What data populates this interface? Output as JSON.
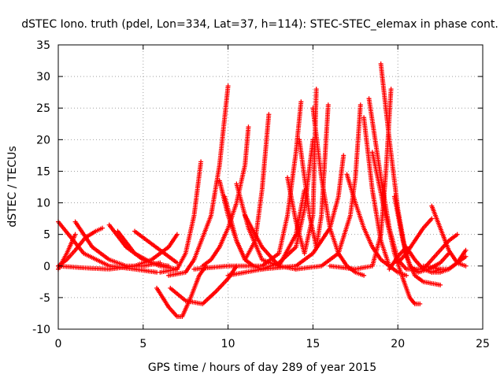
{
  "chart_data": {
    "type": "scatter",
    "title": "dSTEC Iono. truth (pdel, Lon=334, Lat=37, h=114): STEC-STEC_elemax in phase cont.",
    "xlabel": "GPS time / hours of day 289 of year 2015",
    "ylabel": "dSTEC  / TECUs",
    "xlim": [
      0,
      25
    ],
    "ylim": [
      -10,
      35
    ],
    "xticks": [
      0,
      5,
      10,
      15,
      20,
      25
    ],
    "yticks": [
      -10,
      -5,
      0,
      5,
      10,
      15,
      20,
      25,
      30,
      35
    ],
    "grid": true,
    "marker": "+",
    "color": "#ff0000",
    "series": [
      {
        "x": [
          0.0,
          1.5,
          3.0,
          4.5,
          5.8
        ],
        "y": [
          7.0,
          2.0,
          0.0,
          -0.5,
          -1.0
        ]
      },
      {
        "x": [
          0.0,
          0.5,
          1.0,
          1.6,
          2.2,
          2.6
        ],
        "y": [
          0.0,
          1.0,
          2.5,
          4.5,
          5.5,
          6.0
        ]
      },
      {
        "x": [
          0.0,
          0.5,
          1.0
        ],
        "y": [
          -0.5,
          2.0,
          5.0
        ]
      },
      {
        "x": [
          1.0,
          2.0,
          3.0,
          4.0,
          5.0,
          6.0
        ],
        "y": [
          7.0,
          3.0,
          1.0,
          0.0,
          0.0,
          0.5
        ]
      },
      {
        "x": [
          3.0,
          4.0,
          5.0,
          6.0,
          7.0
        ],
        "y": [
          6.5,
          3.0,
          1.0,
          0.0,
          -0.5
        ]
      },
      {
        "x": [
          3.5,
          4.5,
          5.5,
          6.5
        ],
        "y": [
          5.5,
          2.0,
          0.5,
          0.0
        ]
      },
      {
        "x": [
          0.0,
          1.5,
          3.0,
          4.5,
          5.5,
          6.5,
          7.0
        ],
        "y": [
          0.0,
          -0.3,
          -0.5,
          0.0,
          1.0,
          3.0,
          5.0
        ]
      },
      {
        "x": [
          4.5,
          5.0,
          5.5,
          6.0,
          6.5,
          7.0
        ],
        "y": [
          5.5,
          4.5,
          3.5,
          2.5,
          1.5,
          0.5
        ]
      },
      {
        "x": [
          5.8,
          6.5,
          7.0,
          7.3,
          7.8,
          8.3,
          8.7
        ],
        "y": [
          -3.5,
          -6.5,
          -8.0,
          -8.0,
          -5.0,
          -1.5,
          0.0
        ]
      },
      {
        "x": [
          6.0,
          7.0,
          7.5,
          8.0,
          8.4
        ],
        "y": [
          -1.0,
          -0.5,
          2.0,
          8.0,
          16.5
        ]
      },
      {
        "x": [
          6.5,
          7.5,
          8.0,
          9.0,
          9.5,
          10.0
        ],
        "y": [
          -1.5,
          -1.0,
          1.0,
          8.0,
          16.0,
          28.5
        ]
      },
      {
        "x": [
          6.6,
          7.5,
          8.5,
          9.3,
          10.0,
          10.5
        ],
        "y": [
          -3.5,
          -5.5,
          -6.0,
          -4.0,
          -2.0,
          0.0
        ]
      },
      {
        "x": [
          8.5,
          9.0,
          9.5,
          10.0,
          10.5,
          11.0,
          11.2
        ],
        "y": [
          0.0,
          1.0,
          3.0,
          6.0,
          10.0,
          16.0,
          22.0
        ]
      },
      {
        "x": [
          9.5,
          10.0,
          10.5,
          11.0,
          11.5,
          12.0
        ],
        "y": [
          13.5,
          8.0,
          4.0,
          1.0,
          0.0,
          -0.5
        ]
      },
      {
        "x": [
          9.8,
          10.5,
          11.0,
          11.6,
          12.0,
          12.4
        ],
        "y": [
          11.0,
          4.0,
          1.0,
          4.0,
          12.0,
          24.0
        ]
      },
      {
        "x": [
          10.5,
          11.2,
          12.0,
          13.0,
          14.0,
          14.5
        ],
        "y": [
          13.0,
          6.0,
          1.0,
          0.0,
          5.0,
          12.0
        ]
      },
      {
        "x": [
          8.0,
          10.0,
          12.0,
          13.0,
          13.5,
          14.0,
          14.3
        ],
        "y": [
          -0.5,
          0.0,
          0.0,
          2.0,
          8.0,
          18.0,
          26.0
        ]
      },
      {
        "x": [
          11.0,
          12.0,
          13.0,
          14.0
        ],
        "y": [
          8.0,
          3.0,
          0.0,
          -0.5
        ]
      },
      {
        "x": [
          12.0,
          13.0,
          14.0,
          14.5,
          15.0
        ],
        "y": [
          -0.5,
          0.5,
          3.0,
          9.0,
          20.0
        ]
      },
      {
        "x": [
          13.5,
          14.0,
          14.5,
          15.0,
          15.2
        ],
        "y": [
          14.0,
          7.0,
          2.0,
          8.0,
          28.0
        ]
      },
      {
        "x": [
          14.2,
          14.8,
          15.2,
          15.5,
          15.9
        ],
        "y": [
          20.0,
          8.0,
          3.0,
          8.0,
          25.5
        ]
      },
      {
        "x": [
          15.0,
          15.5,
          16.0,
          16.5,
          17.0,
          17.5,
          18.0
        ],
        "y": [
          25.0,
          14.0,
          6.0,
          2.0,
          0.0,
          -1.0,
          -1.5
        ]
      },
      {
        "x": [
          10.0,
          12.0,
          14.0,
          15.0,
          16.0,
          16.5,
          16.8
        ],
        "y": [
          -1.5,
          -0.5,
          0.0,
          2.0,
          6.0,
          11.0,
          17.5
        ]
      },
      {
        "x": [
          14.0,
          15.5,
          16.5,
          17.2,
          17.5,
          17.8
        ],
        "y": [
          -0.5,
          0.0,
          2.0,
          8.0,
          14.0,
          25.5
        ]
      },
      {
        "x": [
          17.0,
          17.5,
          18.0,
          18.5,
          19.0,
          19.5
        ],
        "y": [
          14.5,
          10.0,
          6.0,
          3.0,
          1.0,
          0.0
        ]
      },
      {
        "x": [
          16.0,
          17.5,
          18.5,
          19.0,
          19.3,
          19.6
        ],
        "y": [
          0.0,
          -0.5,
          0.0,
          5.0,
          15.0,
          28.0
        ]
      },
      {
        "x": [
          18.0,
          18.5,
          19.0,
          19.5,
          20.0,
          20.5
        ],
        "y": [
          23.5,
          12.0,
          4.0,
          0.0,
          -1.0,
          -1.5
        ]
      },
      {
        "x": [
          18.3,
          19.0,
          19.5,
          20.0,
          20.5,
          21.0,
          21.5
        ],
        "y": [
          26.5,
          14.0,
          6.0,
          1.0,
          -0.5,
          -0.5,
          -0.5
        ]
      },
      {
        "x": [
          19.0,
          19.5,
          20.0,
          20.5,
          21.0,
          21.5,
          22.5
        ],
        "y": [
          32.0,
          20.0,
          9.0,
          1.5,
          -1.5,
          -2.5,
          -3.0
        ]
      },
      {
        "x": [
          18.5,
          19.2,
          19.8,
          20.3,
          20.7,
          21.0,
          21.3
        ],
        "y": [
          18.0,
          9.0,
          2.0,
          -2.0,
          -5.0,
          -6.0,
          -6.0
        ]
      },
      {
        "x": [
          19.5,
          20.0,
          20.5,
          21.0,
          21.5,
          22.0,
          22.5
        ],
        "y": [
          -0.5,
          1.5,
          3.0,
          1.0,
          -0.5,
          -1.0,
          -0.5
        ]
      },
      {
        "x": [
          19.8,
          20.3,
          20.7,
          21.2,
          21.8,
          22.5,
          23.0
        ],
        "y": [
          11.0,
          4.0,
          0.0,
          -1.0,
          -0.5,
          0.5,
          2.0
        ]
      },
      {
        "x": [
          20.0,
          20.5,
          21.0,
          21.5,
          22.0
        ],
        "y": [
          0.5,
          2.0,
          4.0,
          6.0,
          7.5
        ]
      },
      {
        "x": [
          22.0,
          22.5,
          23.0,
          23.5,
          24.0
        ],
        "y": [
          9.5,
          6.0,
          2.5,
          0.5,
          0.0
        ]
      },
      {
        "x": [
          21.5,
          22.0,
          22.5,
          23.0,
          23.5
        ],
        "y": [
          -0.5,
          1.0,
          2.5,
          4.0,
          5.0
        ]
      },
      {
        "x": [
          22.0,
          22.5,
          23.0,
          23.5,
          24.0
        ],
        "y": [
          -1.0,
          -1.0,
          -0.5,
          0.5,
          2.5
        ]
      },
      {
        "x": [
          21.5,
          22.5,
          23.0,
          23.5,
          24.0
        ],
        "y": [
          0.0,
          -0.5,
          -0.5,
          0.5,
          1.5
        ]
      }
    ]
  }
}
